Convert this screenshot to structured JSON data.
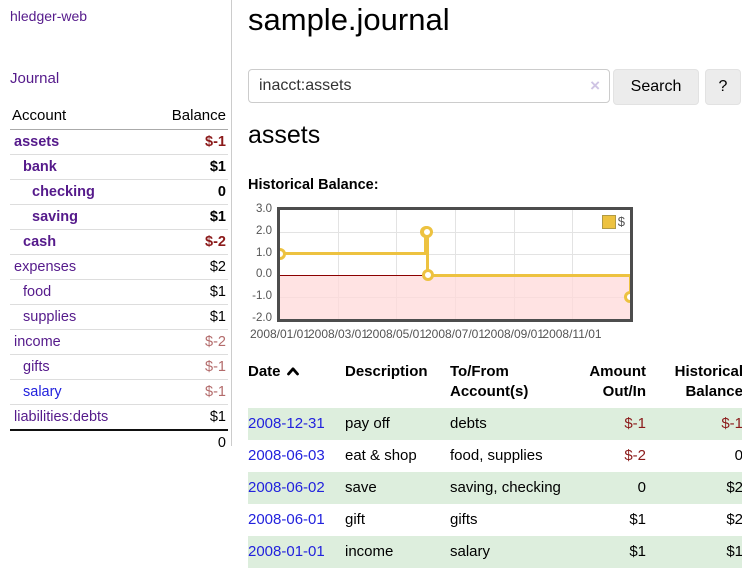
{
  "app": {
    "brand": "hledger-web",
    "nav_journal": "Journal"
  },
  "colors": {
    "purple_link": "#551a8b",
    "blue_link": "#2222dd",
    "negative_strong": "#8b1a1a",
    "negative_muted": "#b36b6b",
    "row_stripe_green": "#ddeedd",
    "chart_line": "#edc240",
    "chart_negative_fill": "#ffd9d9",
    "chart_zero_line": "#8b0000"
  },
  "sidebar": {
    "header": {
      "account": "Account",
      "balance": "Balance"
    },
    "accounts": [
      {
        "name": "assets",
        "level": 0,
        "bold": true,
        "name_color": "purple",
        "balance": "$-1",
        "balance_color": "negstrong",
        "balance_bold": true
      },
      {
        "name": "bank",
        "level": 1,
        "bold": true,
        "name_color": "purple",
        "balance": "$1",
        "balance_color": "black",
        "balance_bold": true
      },
      {
        "name": "checking",
        "level": 2,
        "bold": true,
        "name_color": "purple",
        "balance": "0",
        "balance_color": "black",
        "balance_bold": true
      },
      {
        "name": "saving",
        "level": 2,
        "bold": true,
        "name_color": "purple",
        "balance": "$1",
        "balance_color": "black",
        "balance_bold": true
      },
      {
        "name": "cash",
        "level": 1,
        "bold": true,
        "name_color": "purple",
        "balance": "$-2",
        "balance_color": "negstrong",
        "balance_bold": true
      },
      {
        "name": "expenses",
        "level": 0,
        "bold": false,
        "name_color": "purple",
        "balance": "$2",
        "balance_color": "black",
        "balance_bold": false
      },
      {
        "name": "food",
        "level": 1,
        "bold": false,
        "name_color": "purple",
        "balance": "$1",
        "balance_color": "black",
        "balance_bold": false
      },
      {
        "name": "supplies",
        "level": 1,
        "bold": false,
        "name_color": "purple",
        "balance": "$1",
        "balance_color": "black",
        "balance_bold": false
      },
      {
        "name": "income",
        "level": 0,
        "bold": false,
        "name_color": "purple",
        "balance": "$-2",
        "balance_color": "negmuted",
        "balance_bold": false
      },
      {
        "name": "gifts",
        "level": 1,
        "bold": false,
        "name_color": "purple",
        "balance": "$-1",
        "balance_color": "negmuted",
        "balance_bold": false
      },
      {
        "name": "salary",
        "level": 1,
        "bold": false,
        "name_color": "blue",
        "balance": "$-1",
        "balance_color": "negmuted",
        "balance_bold": false
      },
      {
        "name": "liabilities:debts",
        "level": 0,
        "bold": false,
        "name_color": "purple",
        "balance": "$1",
        "balance_color": "black",
        "balance_bold": false
      }
    ],
    "total": "0"
  },
  "header": {
    "title": "sample.journal"
  },
  "search": {
    "value": "inacct:assets",
    "clear_icon": "×",
    "button": "Search",
    "help": "?"
  },
  "account_page": {
    "heading": "assets",
    "chart_label": "Historical Balance:"
  },
  "chart_data": {
    "type": "line",
    "style": "steps",
    "title": "Historical Balance",
    "legend_label": "$",
    "legend_position": "top-right",
    "grid": true,
    "points": [
      {
        "date": "2008-01-01",
        "value": 1
      },
      {
        "date": "2008-06-01",
        "value": 2
      },
      {
        "date": "2008-06-02",
        "value": 2
      },
      {
        "date": "2008-06-03",
        "value": 0
      },
      {
        "date": "2008-12-31",
        "value": -1
      }
    ],
    "x_range": [
      "2008-01-01",
      "2008-12-31"
    ],
    "x_ticks": [
      "2008/01/01",
      "2008/03/01",
      "2008/05/01",
      "2008/07/01",
      "2008/09/01",
      "2008/11/01"
    ],
    "y_ticks": [
      "3.0",
      "2.0",
      "1.0",
      "0.0",
      "-1.0",
      "-2.0"
    ],
    "ylim": [
      -2,
      3
    ],
    "line_color": "#edc240",
    "negative_fill": "#ffd9d9",
    "zero_line_color": "#8b0000"
  },
  "register": {
    "columns": [
      {
        "key": "date",
        "label": "Date",
        "sort": "asc",
        "sortable": true
      },
      {
        "key": "description",
        "label": "Description"
      },
      {
        "key": "accounts",
        "label": "To/From Account(s)"
      },
      {
        "key": "amount",
        "label": "Amount Out/In",
        "align": "right"
      },
      {
        "key": "balance",
        "label": "Historical Balance",
        "align": "right"
      }
    ],
    "rows": [
      {
        "date": "2008-12-31",
        "description": "pay off",
        "accounts": "debts",
        "amount": "$-1",
        "amount_negative": true,
        "balance": "$-1",
        "balance_negative": true
      },
      {
        "date": "2008-06-03",
        "description": "eat & shop",
        "accounts": "food, supplies",
        "amount": "$-2",
        "amount_negative": true,
        "balance": "0",
        "balance_negative": false
      },
      {
        "date": "2008-06-02",
        "description": "save",
        "accounts": "saving, checking",
        "amount": "0",
        "amount_negative": false,
        "balance": "$2",
        "balance_negative": false
      },
      {
        "date": "2008-06-01",
        "description": "gift",
        "accounts": "gifts",
        "amount": "$1",
        "amount_negative": false,
        "balance": "$2",
        "balance_negative": false
      },
      {
        "date": "2008-01-01",
        "description": "income",
        "accounts": "salary",
        "amount": "$1",
        "amount_negative": false,
        "balance": "$1",
        "balance_negative": false
      }
    ]
  }
}
